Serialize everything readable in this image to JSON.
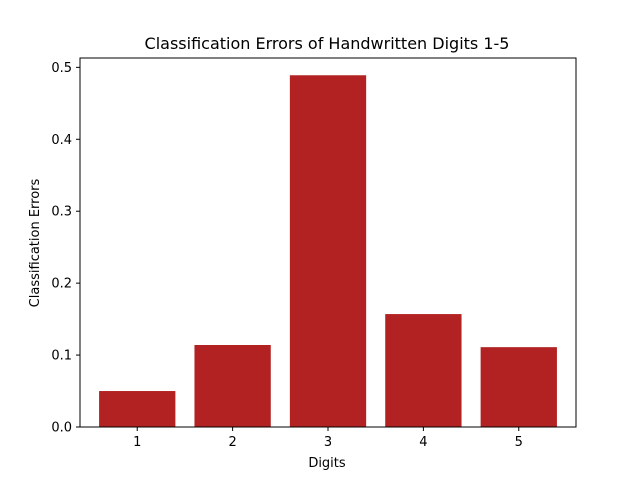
{
  "chart_data": {
    "type": "bar",
    "title": "Classification Errors of Handwritten Digits 1-5",
    "xlabel": "Digits",
    "ylabel": "Classification Errors",
    "categories": [
      "1",
      "2",
      "3",
      "4",
      "5"
    ],
    "values": [
      0.05,
      0.114,
      0.489,
      0.157,
      0.111
    ],
    "ylim": [
      0,
      0.513
    ],
    "yticks": [
      0.0,
      0.1,
      0.2,
      0.3,
      0.4,
      0.5
    ],
    "ytick_labels": [
      "0.0",
      "0.1",
      "0.2",
      "0.3",
      "0.4",
      "0.5"
    ],
    "bar_color": "#b22222",
    "grid": false,
    "legend": "none"
  }
}
